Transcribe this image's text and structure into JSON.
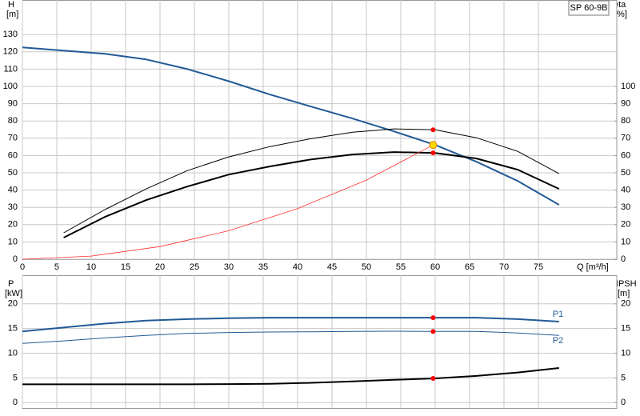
{
  "chart_data": [
    {
      "type": "line",
      "title": "SP 60-9B",
      "ylabel": "H",
      "yunit": "[m]",
      "y2label": "eta",
      "y2unit": "[%]",
      "xlabel": "Q [m³/h]",
      "xlim": [
        0,
        86.4
      ],
      "xticks": [
        0,
        5,
        10,
        15,
        20,
        25,
        30,
        35,
        40,
        45,
        50,
        55,
        60,
        65,
        70,
        75
      ],
      "ylim": [
        0,
        150
      ],
      "yticks": [
        0,
        10,
        20,
        30,
        40,
        50,
        60,
        70,
        80,
        90,
        100,
        110,
        120,
        130
      ],
      "y2lim": [
        0,
        150
      ],
      "y2ticks": [
        0,
        10,
        20,
        30,
        40,
        50,
        60,
        70,
        80,
        90,
        100
      ],
      "grid": true,
      "series": [
        {
          "color": "#235a96",
          "width": 2,
          "axis": "y",
          "x": [
            0,
            6,
            12,
            18,
            24,
            30,
            36,
            42,
            48,
            54,
            60,
            66,
            72,
            78
          ],
          "values": [
            122.6,
            120.7,
            118.9,
            115.6,
            110,
            103,
            95.3,
            88.3,
            81.4,
            74,
            66.1,
            56.4,
            45.3,
            31.5
          ]
        },
        {
          "color": "#000000",
          "width": 1,
          "axis": "y2",
          "x": [
            6,
            12,
            18,
            24,
            30,
            36,
            42,
            48,
            54,
            60,
            66,
            72,
            78
          ],
          "values": [
            15.3,
            28.7,
            40.7,
            51.3,
            59.2,
            65.2,
            69.8,
            73.5,
            75.4,
            74.9,
            70.3,
            62.4,
            49.5
          ]
        },
        {
          "color": "#000000",
          "width": 2,
          "axis": "y2",
          "x": [
            6,
            12,
            18,
            24,
            30,
            36,
            42,
            48,
            54,
            60,
            66,
            72,
            78
          ],
          "values": [
            12.5,
            24.5,
            34.2,
            42.1,
            49,
            53.7,
            57.8,
            60.6,
            62,
            61.5,
            58.3,
            51.8,
            40.7
          ]
        },
        {
          "color": "#ff3030",
          "width": 0.8,
          "axis": "y",
          "x": [
            0,
            10,
            20,
            30,
            40,
            50,
            59.7
          ],
          "values": [
            0,
            1.8,
            7.3,
            16.5,
            29.3,
            45.8,
            66.1
          ]
        }
      ],
      "markers": [
        {
          "x": 59.7,
          "y": 74.9,
          "axis": "y2",
          "color": "#ff0000"
        },
        {
          "x": 59.7,
          "y": 61.5,
          "axis": "y2",
          "color": "#ff0000"
        },
        {
          "x": 59.7,
          "y": 66.1,
          "axis": "y",
          "color": "#ffd800"
        }
      ]
    },
    {
      "type": "line",
      "ylabel": "P",
      "yunit": "[kW]",
      "y2label": "NPSH",
      "y2unit": "[m]",
      "xlim": [
        0,
        86.4
      ],
      "ylim": [
        -1.1,
        25.8
      ],
      "yticks": [
        0,
        5,
        10,
        15,
        20
      ],
      "y2lim": [
        -1.1,
        25.8
      ],
      "y2ticks": [
        0,
        5,
        10,
        15,
        20
      ],
      "grid": true,
      "series": [
        {
          "name": "P1",
          "color": "#235a96",
          "width": 2,
          "axis": "y",
          "x": [
            0,
            6,
            12,
            18,
            24,
            30,
            36,
            42,
            48,
            54,
            60,
            66,
            72,
            78
          ],
          "values": [
            14.4,
            15.2,
            16,
            16.6,
            16.9,
            17.1,
            17.2,
            17.2,
            17.2,
            17.2,
            17.2,
            17.2,
            16.9,
            16.4
          ]
        },
        {
          "name": "P2",
          "color": "#235a96",
          "width": 1,
          "axis": "y",
          "x": [
            0,
            6,
            12,
            18,
            24,
            30,
            36,
            42,
            48,
            54,
            60,
            66,
            72,
            78
          ],
          "values": [
            12,
            12.5,
            13.1,
            13.6,
            14,
            14.2,
            14.3,
            14.35,
            14.4,
            14.45,
            14.4,
            14.4,
            14.1,
            13.6
          ]
        },
        {
          "color": "#000000",
          "width": 2,
          "axis": "y2",
          "x": [
            0,
            6,
            12,
            18,
            24,
            30,
            36,
            42,
            48,
            54,
            60,
            66,
            72,
            78
          ],
          "values": [
            3.7,
            3.7,
            3.7,
            3.7,
            3.7,
            3.75,
            3.8,
            4,
            4.3,
            4.6,
            4.9,
            5.4,
            6.1,
            7
          ]
        }
      ],
      "markers": [
        {
          "x": 59.7,
          "y": 17.2,
          "axis": "y",
          "color": "#ff0000"
        },
        {
          "x": 59.7,
          "y": 14.4,
          "axis": "y",
          "color": "#ff0000"
        },
        {
          "x": 59.7,
          "y": 4.9,
          "axis": "y2",
          "color": "#ff0000"
        }
      ]
    }
  ]
}
